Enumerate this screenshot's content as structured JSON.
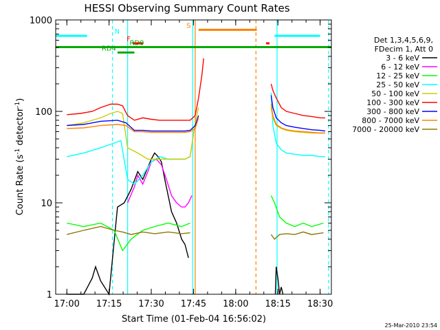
{
  "chart_data": {
    "type": "line",
    "title": "HESSI Observing Summary Count Rates",
    "xlabel": "Start Time (01-Feb-04 16:56:02)",
    "ylabel_main": "Count Rate (s",
    "ylabel_sup1": "-1",
    "ylabel_mid": " detector",
    "ylabel_sup2": "-1",
    "ylabel_end": ")",
    "y_scale": "log",
    "ylim": [
      1,
      1000
    ],
    "xlim": [
      16.9339,
      18.5667
    ],
    "x_ticks": [
      {
        "label": "17:00",
        "value": 17.0
      },
      {
        "label": "17:15",
        "value": 17.25
      },
      {
        "label": "17:30",
        "value": 17.5
      },
      {
        "label": "17:45",
        "value": 17.75
      },
      {
        "label": "18:00",
        "value": 18.0
      },
      {
        "label": "18:15",
        "value": 18.25
      },
      {
        "label": "18:30",
        "value": 18.5
      }
    ],
    "y_ticks": [
      {
        "label": "1",
        "value": 1
      },
      {
        "label": "10",
        "value": 10
      },
      {
        "label": "100",
        "value": 100
      },
      {
        "label": "1000",
        "value": 1000
      }
    ],
    "legend_header": [
      "Det 1,3,4,5,6,9,",
      "FDecim 1, Att 0"
    ],
    "series": [
      {
        "name": "3 - 6 keV",
        "color": "#000000",
        "x": [
          17.0,
          17.1,
          17.15,
          17.17,
          17.2,
          17.25,
          17.3,
          17.34,
          17.38,
          17.42,
          17.45,
          17.5,
          17.52,
          17.54,
          17.56,
          17.58,
          17.6,
          17.62,
          17.65,
          17.68,
          17.7,
          17.72
        ],
        "y": [
          1,
          1,
          1.5,
          2,
          1.4,
          1,
          9,
          10,
          14,
          22,
          18,
          30,
          35,
          32,
          28,
          18,
          12,
          8,
          6,
          4,
          3.5,
          2.5
        ]
      },
      {
        "name": "6 - 12 keV",
        "color": "#ff00ff",
        "x": [
          17.36,
          17.4,
          17.42,
          17.45,
          17.48,
          17.5,
          17.53,
          17.56,
          17.59,
          17.62,
          17.65,
          17.68,
          17.7,
          17.72,
          17.74
        ],
        "y": [
          10,
          15,
          20,
          16,
          22,
          28,
          30,
          26,
          18,
          12,
          10,
          9,
          9,
          10,
          12
        ]
      },
      {
        "name": "12 - 25 keV",
        "color": "#00ff00",
        "x": [
          17.0,
          17.1,
          17.2,
          17.28,
          17.33,
          17.38,
          17.45,
          17.52,
          17.6,
          17.68,
          17.73
        ],
        "y": [
          6,
          5.5,
          6,
          5,
          3,
          4,
          5,
          5.5,
          6,
          5.5,
          6
        ]
      },
      {
        "name": "25 - 50 keV",
        "color": "#00ffff",
        "x": [
          17.0,
          17.1,
          17.2,
          17.28,
          17.32,
          17.36,
          17.4,
          17.45,
          17.5,
          17.55,
          17.6,
          17.65,
          17.7,
          17.73,
          17.75
        ],
        "y": [
          32,
          35,
          40,
          45,
          48,
          18,
          16,
          20,
          28,
          32,
          30,
          30,
          30,
          32,
          55
        ]
      },
      {
        "name": "50 - 100 keV",
        "color": "#cccc00",
        "x": [
          17.0,
          17.1,
          17.2,
          17.26,
          17.3,
          17.33,
          17.36,
          17.42,
          17.48,
          17.55,
          17.6,
          17.65,
          17.7,
          17.73,
          17.76,
          17.78
        ],
        "y": [
          70,
          75,
          85,
          95,
          100,
          95,
          40,
          35,
          30,
          30,
          30,
          30,
          30,
          32,
          75,
          110
        ]
      },
      {
        "name": "100 - 300 keV",
        "color": "#ff0000",
        "x": [
          17.0,
          17.08,
          17.15,
          17.2,
          17.26,
          17.3,
          17.33,
          17.36,
          17.4,
          17.45,
          17.5,
          17.55,
          17.6,
          17.65,
          17.7,
          17.73,
          17.76,
          17.78,
          17.8,
          17.81
        ],
        "y": [
          92,
          95,
          100,
          110,
          120,
          120,
          115,
          90,
          80,
          85,
          82,
          80,
          80,
          80,
          80,
          80,
          90,
          140,
          250,
          380
        ]
      },
      {
        "name": "300 - 800 keV",
        "color": "#0000ff",
        "x": [
          17.0,
          17.1,
          17.2,
          17.3,
          17.35,
          17.4,
          17.45,
          17.5,
          17.55,
          17.6,
          17.65,
          17.7,
          17.73,
          17.76,
          17.78
        ],
        "y": [
          70,
          72,
          78,
          80,
          75,
          62,
          62,
          61,
          61,
          61,
          61,
          61,
          62,
          70,
          90
        ]
      },
      {
        "name": "800 - 7000 keV",
        "color": "#ff8000",
        "x": [
          17.0,
          17.1,
          17.2,
          17.3,
          17.35,
          17.4,
          17.45,
          17.5,
          17.55,
          17.6,
          17.65,
          17.7,
          17.73,
          17.76,
          17.78
        ],
        "y": [
          65,
          66,
          70,
          72,
          70,
          60,
          60,
          59,
          59,
          59,
          59,
          59,
          60,
          65,
          85
        ]
      },
      {
        "name": "7000 - 20000 keV",
        "color": "#8b7800",
        "x": [
          17.0,
          17.1,
          17.2,
          17.28,
          17.33,
          17.38,
          17.45,
          17.52,
          17.6,
          17.68,
          17.73
        ],
        "y": [
          4.5,
          5,
          5.5,
          5,
          4.8,
          4.5,
          4.8,
          4.6,
          4.8,
          4.6,
          4.7
        ]
      }
    ],
    "post_gap_series": [
      {
        "color": "#000000",
        "x": [
          18.235,
          18.24,
          18.25,
          18.26,
          18.27,
          18.28
        ],
        "y": [
          1,
          2,
          1.5,
          1,
          1.2,
          1
        ]
      },
      {
        "color": "#00ff00",
        "x": [
          18.21,
          18.23,
          18.26,
          18.3,
          18.35,
          18.4,
          18.45,
          18.52
        ],
        "y": [
          12,
          10,
          7,
          6,
          5.5,
          6,
          5.5,
          6
        ]
      },
      {
        "color": "#8b7800",
        "x": [
          18.21,
          18.23,
          18.26,
          18.3,
          18.35,
          18.4,
          18.45,
          18.52
        ],
        "y": [
          4.5,
          4,
          4.5,
          4.6,
          4.5,
          4.8,
          4.5,
          4.7
        ]
      },
      {
        "color": "#00ffff",
        "x": [
          18.21,
          18.22,
          18.24,
          18.27,
          18.3,
          18.35,
          18.4,
          18.45,
          18.5,
          18.53
        ],
        "y": [
          160,
          70,
          45,
          38,
          35,
          34,
          33,
          33,
          32,
          32
        ]
      },
      {
        "color": "#cccc00",
        "x": [
          18.21,
          18.22,
          18.24,
          18.27,
          18.3,
          18.35,
          18.4,
          18.45,
          18.5,
          18.53
        ],
        "y": [
          110,
          85,
          70,
          65,
          62,
          60,
          59,
          58,
          58,
          58
        ]
      },
      {
        "color": "#ff8000",
        "x": [
          18.21,
          18.22,
          18.24,
          18.27,
          18.3,
          18.35,
          18.4,
          18.45,
          18.5,
          18.53
        ],
        "y": [
          120,
          90,
          72,
          66,
          63,
          61,
          60,
          59,
          58,
          58
        ]
      },
      {
        "color": "#0000ff",
        "x": [
          18.21,
          18.22,
          18.24,
          18.27,
          18.3,
          18.35,
          18.4,
          18.45,
          18.5,
          18.53
        ],
        "y": [
          150,
          110,
          85,
          75,
          70,
          67,
          65,
          63,
          62,
          61
        ]
      },
      {
        "color": "#ff0000",
        "x": [
          18.21,
          18.22,
          18.24,
          18.27,
          18.3,
          18.35,
          18.4,
          18.45,
          18.5,
          18.53
        ],
        "y": [
          200,
          170,
          140,
          110,
          100,
          95,
          90,
          88,
          85,
          85
        ]
      }
    ],
    "observing_flags": [
      {
        "label": "N",
        "color": "#00ffff",
        "y": 670,
        "segments": [
          [
            16.9339,
            17.12
          ],
          [
            18.23,
            18.5
          ]
        ]
      },
      {
        "label": "S",
        "color": "#ff8000",
        "y": 780,
        "segments": [
          [
            17.78,
            18.125
          ]
        ]
      },
      {
        "label": "F",
        "color": "#ff0000",
        "y": 555,
        "segments": [
          [
            17.39,
            17.45
          ],
          [
            18.18,
            18.2
          ]
        ]
      },
      {
        "label": "RD0",
        "color": "#00aa00",
        "y": 505,
        "segments": [
          [
            16.9339,
            18.5667
          ]
        ]
      },
      {
        "label": "RD4",
        "color": "#00aa00",
        "y": 440,
        "segments": [
          [
            17.3,
            17.4
          ]
        ]
      }
    ],
    "vertical_markers": [
      {
        "x": 17.27,
        "color": "#00ffff",
        "dashed": true
      },
      {
        "x": 17.36,
        "color": "#00ffff",
        "dashed": false
      },
      {
        "x": 17.745,
        "color": "#00ffff",
        "dashed": false
      },
      {
        "x": 17.76,
        "color": "#ff8000",
        "dashed": false
      },
      {
        "x": 18.12,
        "color": "#ff8000",
        "dashed": true
      },
      {
        "x": 18.245,
        "color": "#00ffff",
        "dashed": false
      },
      {
        "x": 18.55,
        "color": "#00ffff",
        "dashed": true
      }
    ],
    "timestamp": "25-Mar-2010 23:54"
  }
}
